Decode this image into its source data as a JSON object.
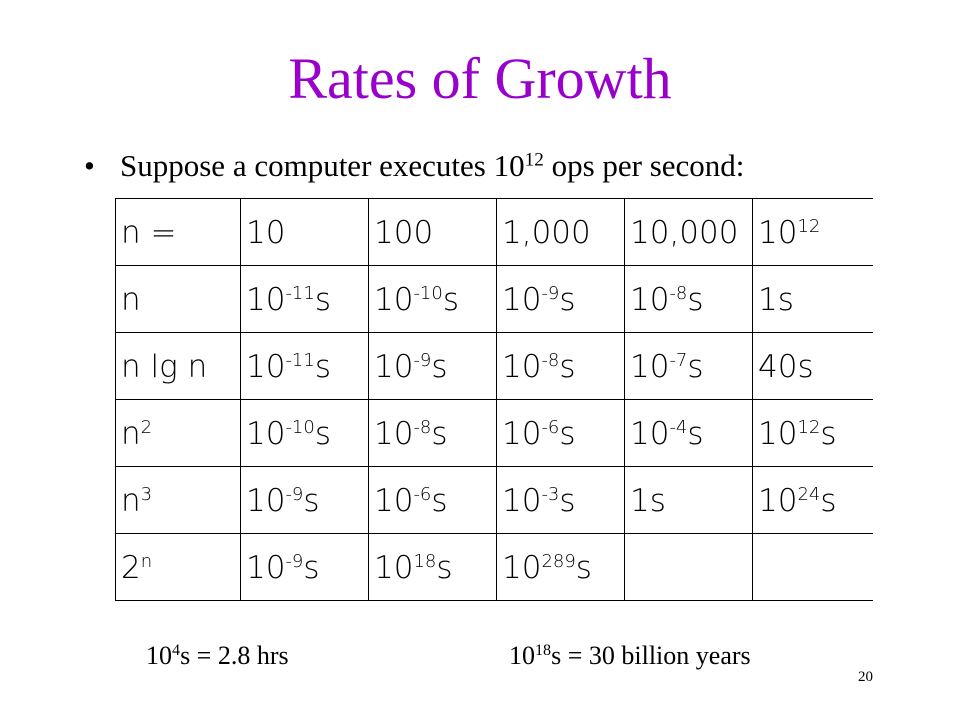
{
  "slide": {
    "title": "Rates of Growth",
    "bullet_marker": "•",
    "bullet": {
      "before": "Suppose a computer executes 10",
      "exp": "12",
      "after": " ops per second:"
    },
    "page_number": "20"
  },
  "table": {
    "rows": [
      [
        {
          "t": "n ="
        },
        {
          "t": "10"
        },
        {
          "t": "100"
        },
        {
          "t": "1,000"
        },
        {
          "t": "10,000"
        },
        {
          "t": "10",
          "e": "12"
        }
      ],
      [
        {
          "t": "n"
        },
        {
          "t": "10",
          "e": "-11",
          "s": "s"
        },
        {
          "t": "10",
          "e": "-10",
          "s": "s"
        },
        {
          "t": "10",
          "e": "-9",
          "s": "s"
        },
        {
          "t": "10",
          "e": "-8",
          "s": "s"
        },
        {
          "t": "1s"
        }
      ],
      [
        {
          "t": "n lg n"
        },
        {
          "t": "10",
          "e": "-11",
          "s": "s"
        },
        {
          "t": "10",
          "e": "-9",
          "s": "s"
        },
        {
          "t": "10",
          "e": "-8",
          "s": "s"
        },
        {
          "t": "10",
          "e": "-7",
          "s": "s"
        },
        {
          "t": "40s"
        }
      ],
      [
        {
          "t": "n",
          "e": "2"
        },
        {
          "t": "10",
          "e": "-10",
          "s": "s"
        },
        {
          "t": "10",
          "e": "-8",
          "s": "s"
        },
        {
          "t": "10",
          "e": "-6",
          "s": "s"
        },
        {
          "t": "10",
          "e": "-4",
          "s": "s"
        },
        {
          "t": "10",
          "e": "12",
          "s": "s"
        }
      ],
      [
        {
          "t": "n",
          "e": "3"
        },
        {
          "t": "10",
          "e": "-9",
          "s": "s"
        },
        {
          "t": "10",
          "e": "-6",
          "s": "s"
        },
        {
          "t": "10",
          "e": "-3",
          "s": "s"
        },
        {
          "t": "1s"
        },
        {
          "t": "10",
          "e": "24",
          "s": "s"
        }
      ],
      [
        {
          "t": "2",
          "e": "n"
        },
        {
          "t": "10",
          "e": "-9",
          "s": "s"
        },
        {
          "t": "10",
          "e": "18",
          "s": "s"
        },
        {
          "t": "10",
          "e": "289",
          "s": "s"
        },
        {
          "t": ""
        },
        {
          "t": ""
        }
      ]
    ]
  },
  "footnotes": {
    "left": {
      "base": "10",
      "exp": "4",
      "rest": "s = 2.8 hrs"
    },
    "right": {
      "base": "10",
      "exp": "18",
      "rest": "s = 30 billion years"
    }
  }
}
